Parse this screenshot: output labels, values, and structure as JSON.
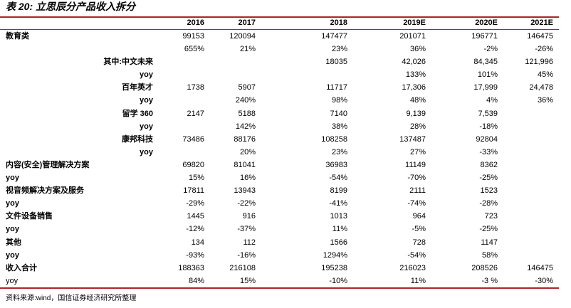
{
  "title": "表 20:  立思辰分产品收入拆分",
  "headers": [
    "2016",
    "2017",
    "2018",
    "2019E",
    "2020E",
    "2021E"
  ],
  "rows": [
    {
      "label": "教育类",
      "indent": false,
      "values": [
        "99153",
        "120094",
        "147477",
        "201071",
        "196771",
        "146475"
      ]
    },
    {
      "label": "",
      "indent": false,
      "values": [
        "655%",
        "21%",
        "23%",
        "36%",
        "-2%",
        "-26%"
      ]
    },
    {
      "label": "其中:中文未来",
      "indent": true,
      "values": [
        "",
        "",
        "18035",
        "42,026",
        "84,345",
        "121,996"
      ]
    },
    {
      "label": "yoy",
      "indent": true,
      "values": [
        "",
        "",
        "",
        "133%",
        "101%",
        "45%"
      ]
    },
    {
      "label": "百年英才",
      "indent": true,
      "values": [
        "1738",
        "5907",
        "11717",
        "17,306",
        "17,999",
        "24,478"
      ]
    },
    {
      "label": "yoy",
      "indent": true,
      "values": [
        "",
        "240%",
        "98%",
        "48%",
        "4%",
        "36%"
      ]
    },
    {
      "label": "留学 360",
      "indent": true,
      "values": [
        "2147",
        "5188",
        "7140",
        "9,139",
        "7,539",
        ""
      ]
    },
    {
      "label": "yoy",
      "indent": true,
      "values": [
        "",
        "142%",
        "38%",
        "28%",
        "-18%",
        ""
      ]
    },
    {
      "label": "康邦科技",
      "indent": true,
      "values": [
        "73486",
        "88176",
        "108258",
        "137487",
        "92804",
        ""
      ]
    },
    {
      "label": "yoy",
      "indent": true,
      "values": [
        "",
        "20%",
        "23%",
        "27%",
        "-33%",
        ""
      ]
    },
    {
      "label": "内容(安全)管理解决方案",
      "indent": false,
      "values": [
        "69820",
        "81041",
        "36983",
        "11149",
        "8362",
        ""
      ]
    },
    {
      "label": "yoy",
      "indent": false,
      "values": [
        "15%",
        "16%",
        "-54%",
        "-70%",
        "-25%",
        ""
      ]
    },
    {
      "label": "视音频解决方案及服务",
      "indent": false,
      "values": [
        "17811",
        "13943",
        "8199",
        "2111",
        "1523",
        ""
      ]
    },
    {
      "label": "yoy",
      "indent": false,
      "values": [
        "-29%",
        "-22%",
        "-41%",
        "-74%",
        "-28%",
        ""
      ]
    },
    {
      "label": "文件设备销售",
      "indent": false,
      "values": [
        "1445",
        "916",
        "1013",
        "964",
        "723",
        ""
      ]
    },
    {
      "label": "yoy",
      "indent": false,
      "values": [
        "-12%",
        "-37%",
        "11%",
        "-5%",
        "-25%",
        ""
      ]
    },
    {
      "label": "其他",
      "indent": false,
      "values": [
        "134",
        "112",
        "1566",
        "728",
        "1147",
        ""
      ]
    },
    {
      "label": "yoy",
      "indent": false,
      "values": [
        "-93%",
        "-16%",
        "1294%",
        "-54%",
        "58%",
        ""
      ]
    },
    {
      "label": "收入合计",
      "indent": false,
      "values": [
        "188363",
        "216108",
        "195238",
        "216023",
        "208526",
        "146475"
      ]
    },
    {
      "label": "yoy",
      "indent": false,
      "normal": true,
      "values": [
        "84%",
        "15%",
        "-10%",
        "11%",
        "-3 %",
        "-30%"
      ]
    }
  ],
  "source": "资料来源:wind，国信证券经济研究所整理"
}
